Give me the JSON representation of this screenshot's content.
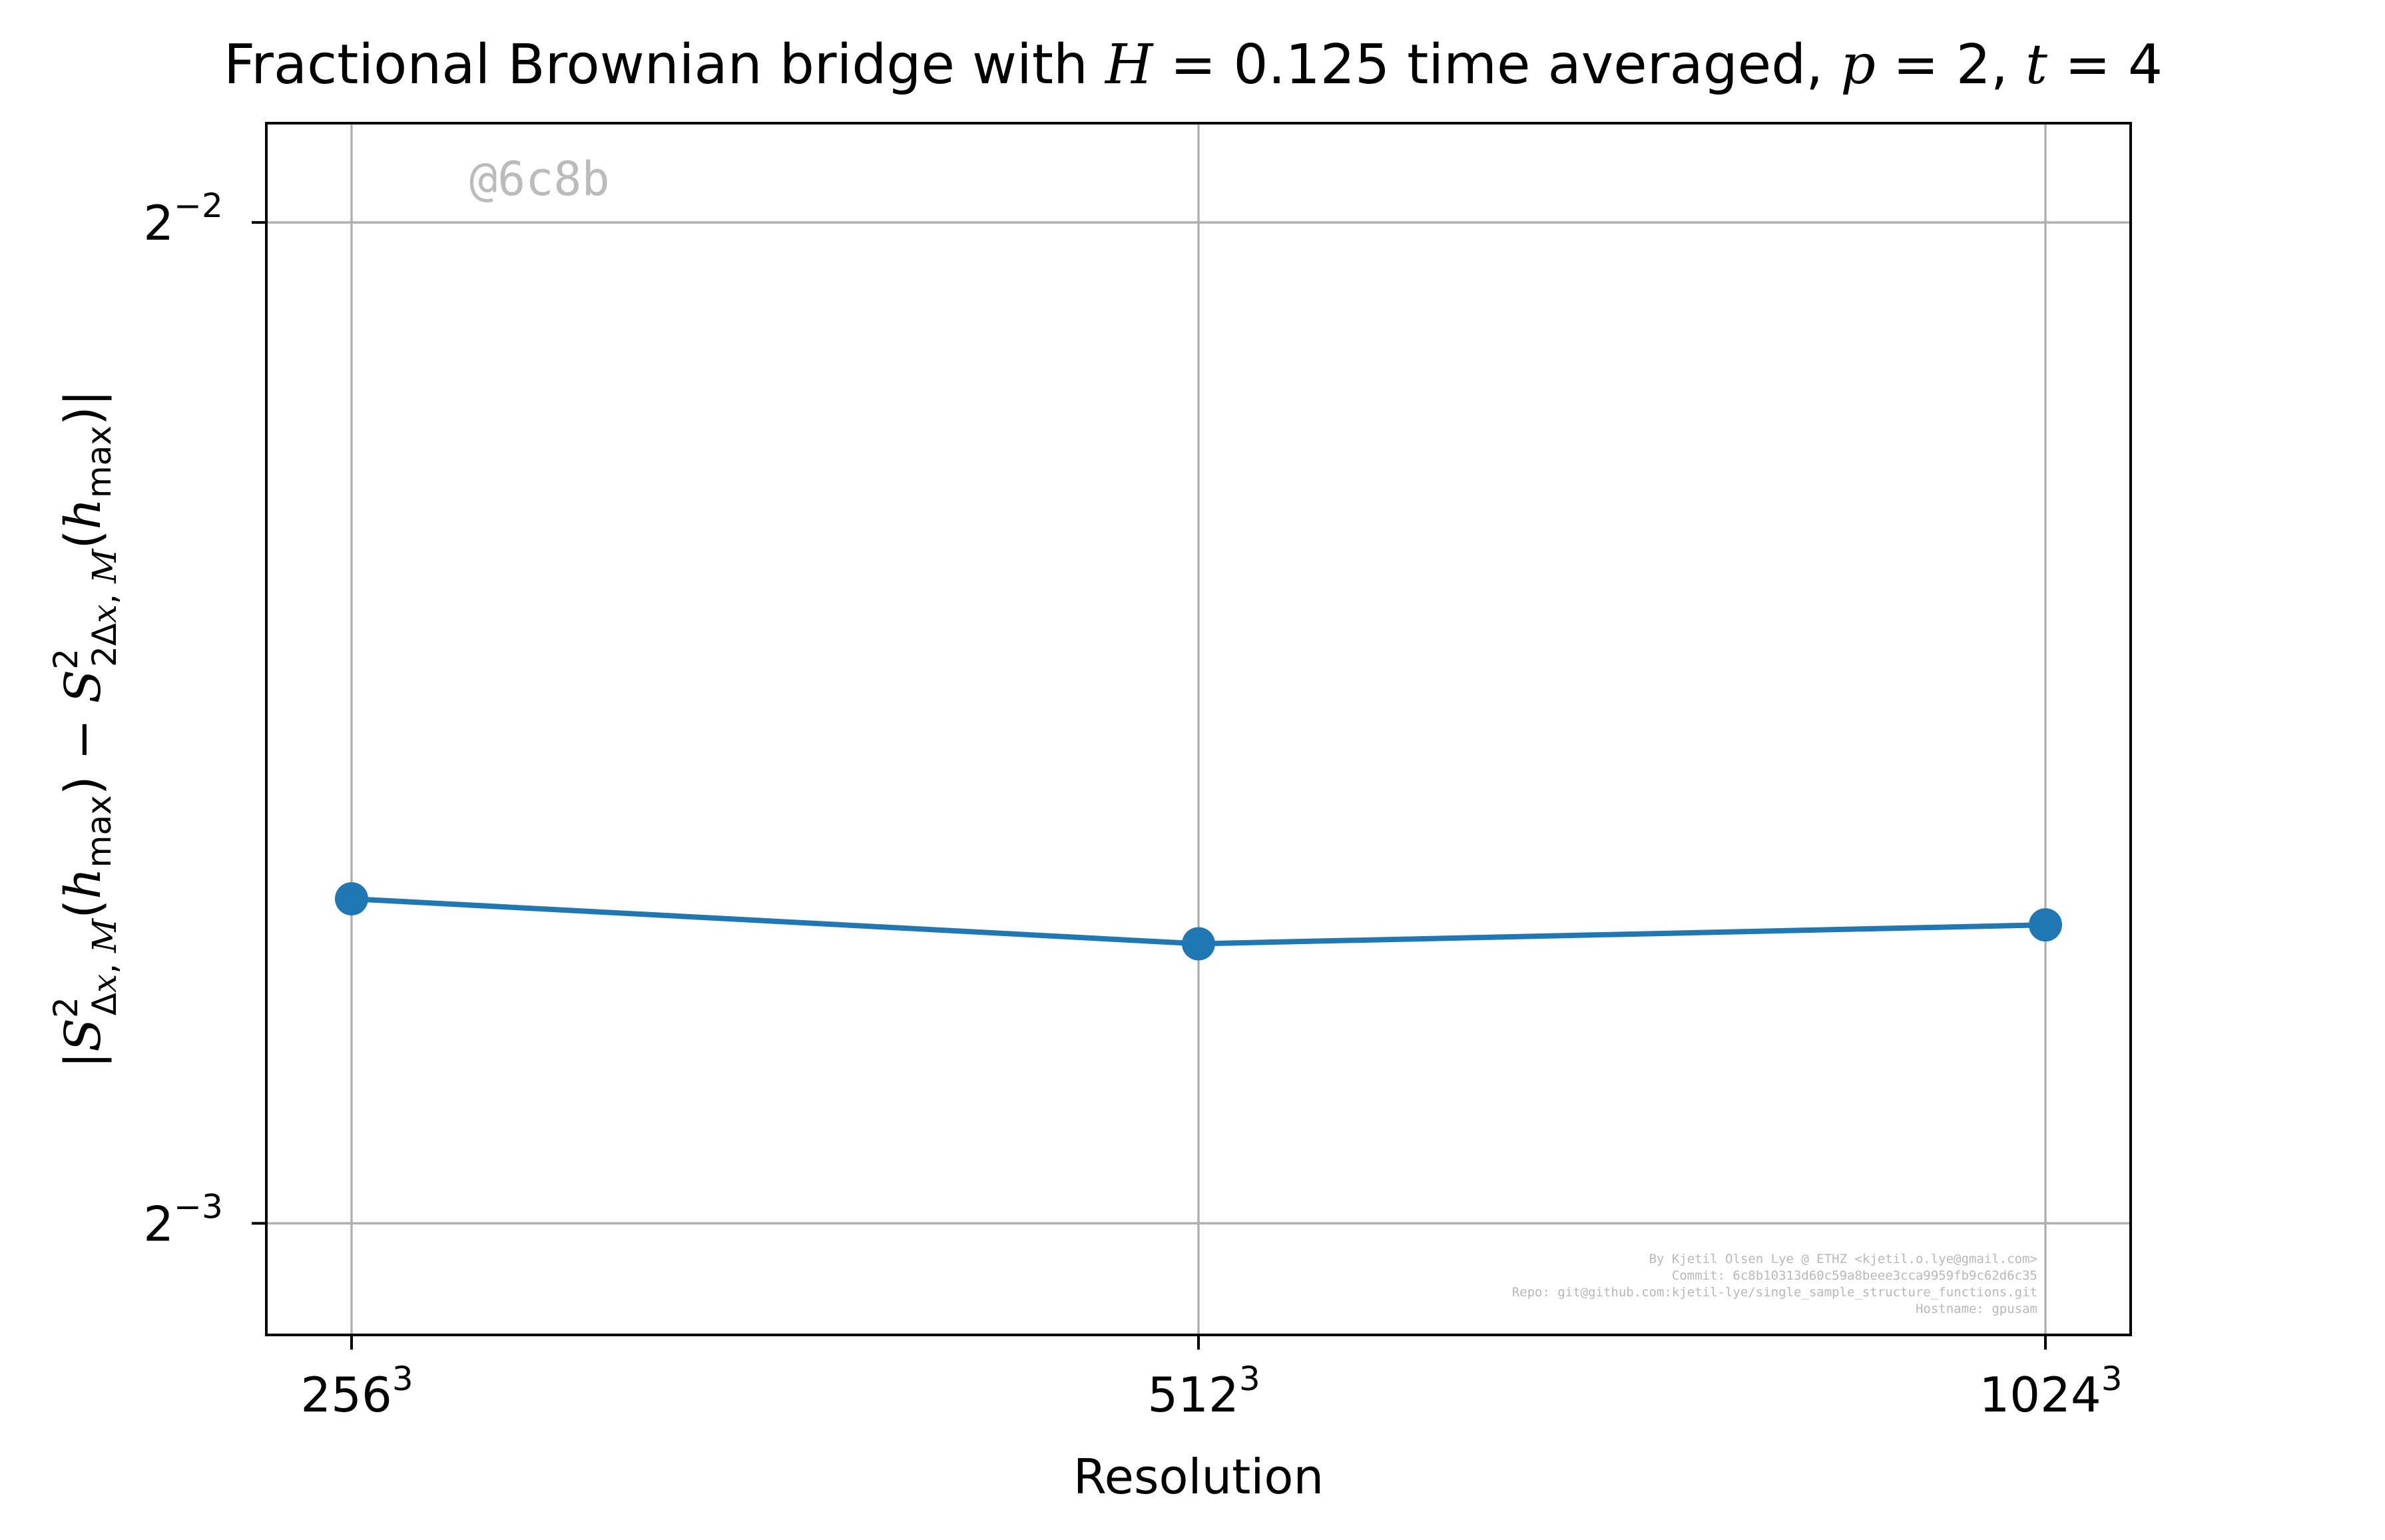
{
  "chart_data": {
    "type": "line",
    "title": {
      "prefix": "Fractional Brownian bridge with ",
      "h_var": "H",
      "h_eq": " = 0.125",
      "middle": " time averaged, ",
      "p_var": "p",
      "p_eq": " = 2, ",
      "t_var": "t",
      "t_eq": " = 4"
    },
    "xlabel": "Resolution",
    "ylabel": "|S²Δx,M(hmax) − S²2Δx,M(hmax)|",
    "x_categories": [
      {
        "base": "256",
        "exp": "3"
      },
      {
        "base": "512",
        "exp": "3"
      },
      {
        "base": "1024",
        "exp": "3"
      }
    ],
    "y_scale": "log2",
    "ylim": [
      0.1157,
      0.2678
    ],
    "y_ticks": [
      {
        "value": 0.25,
        "base": "2",
        "exp": "−2"
      },
      {
        "value": 0.125,
        "base": "2",
        "exp": "−3"
      }
    ],
    "series": [
      {
        "values": [
          0.1565,
          0.1517,
          0.1537
        ],
        "color": "#1f77b4",
        "marker": "circle"
      }
    ],
    "grid": true,
    "watermark": "@6c8b",
    "footer_lines": [
      "By Kjetil Olsen Lye @ ETHZ <kjetil.o.lye@gmail.com>",
      "Commit: 6c8b10313d60c59a8beee3cca9959fb9c62d6c35",
      "Repo: git@github.com:kjetil-lye/single_sample_structure_functions.git",
      "Hostname: gpusam"
    ]
  }
}
